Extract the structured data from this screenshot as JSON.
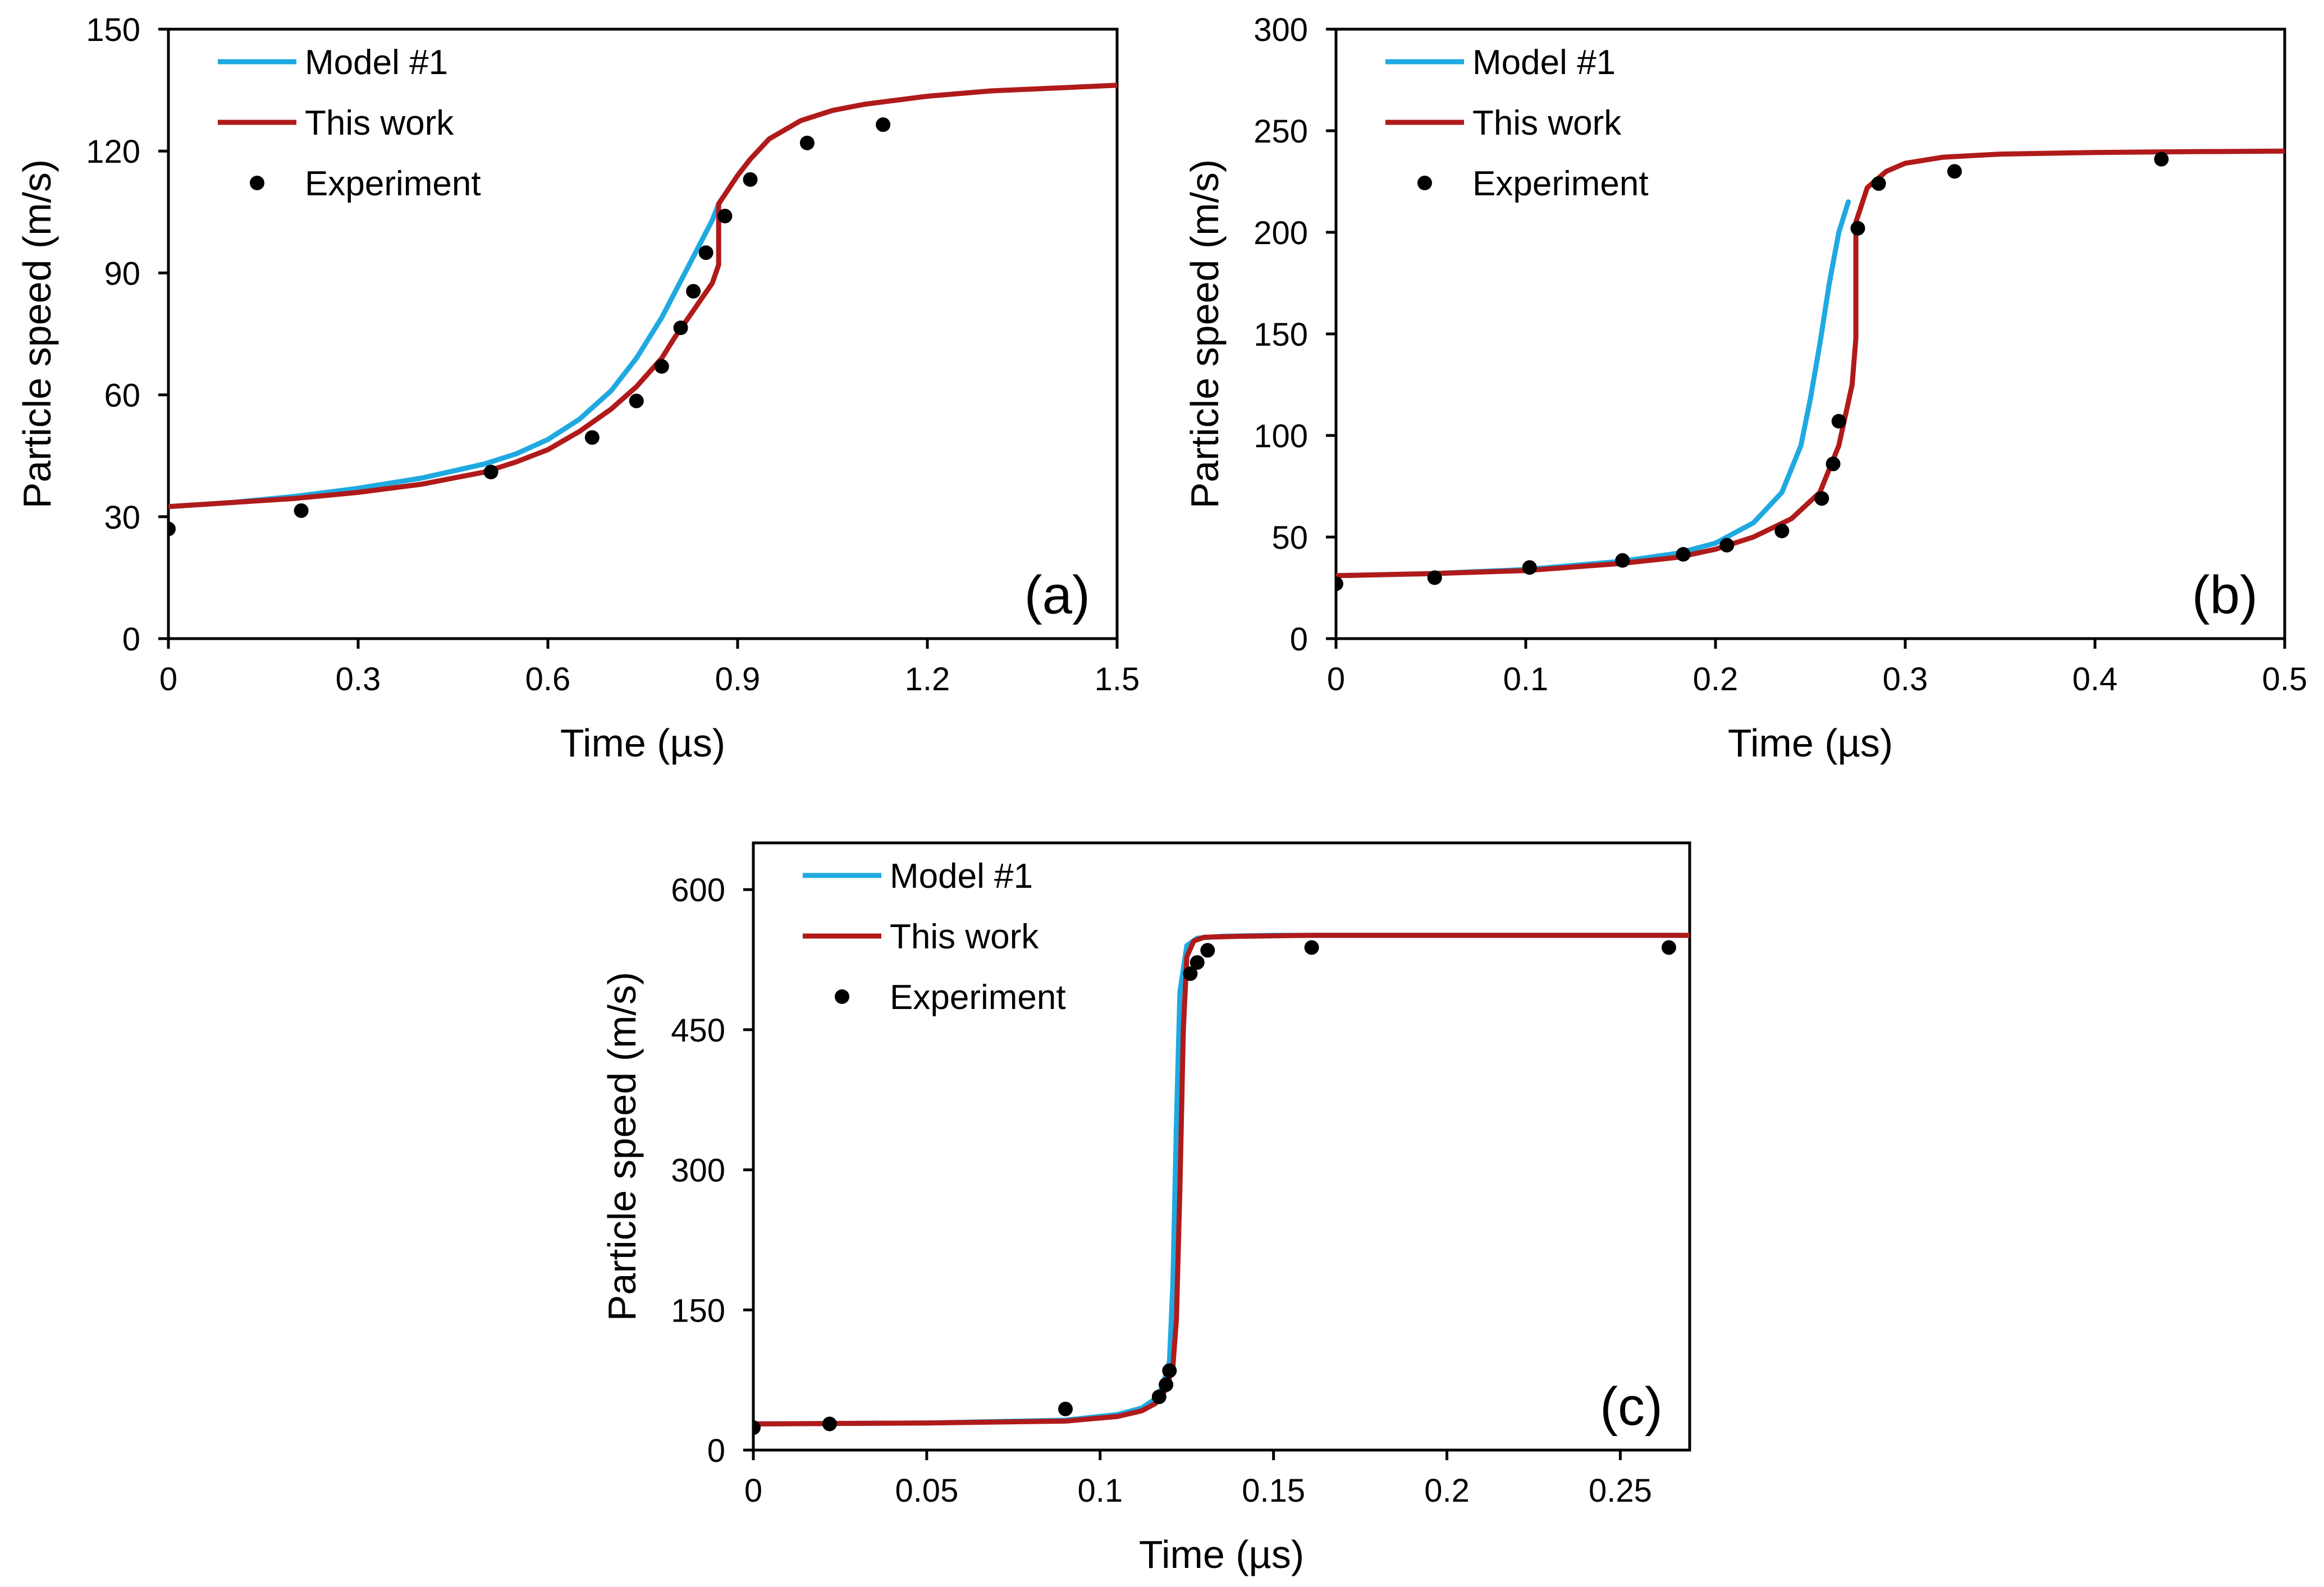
{
  "colors": {
    "model1": "#1FA9E1",
    "this_work": "#B01A1A",
    "experiment": "#000000",
    "axis": "#000000"
  },
  "chart_data": [
    {
      "type": "line",
      "panel_label": "(a)",
      "xlabel": "Time (µs)",
      "ylabel": "Particle speed (m/s)",
      "xlim": [
        0,
        1.5
      ],
      "ylim": [
        0,
        150
      ],
      "x_ticks": [
        "0",
        "0.3",
        "0.6",
        "0.9",
        "1.2",
        "1.5"
      ],
      "y_ticks": [
        "0",
        "30",
        "60",
        "90",
        "120",
        "150"
      ],
      "legend_position": "top-left",
      "series": [
        {
          "name": "Model #1",
          "kind": "line",
          "color_key": "model1",
          "x": [
            0,
            0.1,
            0.2,
            0.3,
            0.4,
            0.5,
            0.55,
            0.6,
            0.65,
            0.7,
            0.74,
            0.78,
            0.8,
            0.82,
            0.84,
            0.86,
            0.87
          ],
          "y": [
            32.5,
            33.5,
            35,
            37,
            39.5,
            43,
            45.5,
            49,
            54,
            61,
            69,
            79,
            85,
            91,
            97,
            103,
            107
          ]
        },
        {
          "name": "This work",
          "kind": "line",
          "color_key": "this_work",
          "x": [
            0,
            0.1,
            0.2,
            0.3,
            0.4,
            0.5,
            0.55,
            0.6,
            0.65,
            0.7,
            0.74,
            0.78,
            0.8,
            0.82,
            0.84,
            0.86,
            0.87,
            0.87,
            0.9,
            0.92,
            0.95,
            1.0,
            1.05,
            1.1,
            1.2,
            1.3,
            1.4,
            1.5
          ],
          "y": [
            32.5,
            33.5,
            34.5,
            36,
            38,
            41,
            43.5,
            46.5,
            51,
            56.5,
            62,
            69,
            74,
            78.5,
            83,
            87.5,
            92,
            107,
            114,
            118,
            123,
            127.5,
            130,
            131.5,
            133.5,
            134.8,
            135.5,
            136.2
          ]
        },
        {
          "name": "Experiment",
          "kind": "scatter",
          "color_key": "experiment",
          "x": [
            0,
            0.21,
            0.51,
            0.67,
            0.74,
            0.78,
            0.81,
            0.83,
            0.85,
            0.88,
            0.92,
            1.01,
            1.13
          ],
          "y": [
            27,
            31.5,
            41,
            49.5,
            58.5,
            67,
            76.5,
            85.5,
            95,
            104,
            113,
            122,
            126.5
          ]
        }
      ]
    },
    {
      "type": "line",
      "panel_label": "(b)",
      "xlabel": "Time (µs)",
      "ylabel": "Particle speed (m/s)",
      "xlim": [
        0,
        0.5
      ],
      "ylim": [
        0,
        300
      ],
      "x_ticks": [
        "0",
        "0.1",
        "0.2",
        "0.3",
        "0.4",
        "0.5"
      ],
      "y_ticks": [
        "0",
        "50",
        "100",
        "150",
        "200",
        "250",
        "300"
      ],
      "legend_position": "top-left",
      "series": [
        {
          "name": "Model #1",
          "kind": "line",
          "color_key": "model1",
          "x": [
            0,
            0.05,
            0.1,
            0.15,
            0.18,
            0.2,
            0.22,
            0.235,
            0.245,
            0.25,
            0.255,
            0.26,
            0.265,
            0.27
          ],
          "y": [
            31,
            32,
            34,
            38,
            42,
            47,
            57,
            72,
            95,
            118,
            145,
            175,
            200,
            215
          ]
        },
        {
          "name": "This work",
          "kind": "line",
          "color_key": "this_work",
          "x": [
            0,
            0.05,
            0.1,
            0.15,
            0.18,
            0.2,
            0.22,
            0.24,
            0.255,
            0.265,
            0.272,
            0.274,
            0.274,
            0.28,
            0.29,
            0.3,
            0.32,
            0.35,
            0.4,
            0.45,
            0.5
          ],
          "y": [
            31,
            32,
            33.5,
            37,
            40,
            44,
            50,
            59,
            72,
            95,
            125,
            148,
            205,
            222,
            230,
            234,
            237,
            238.5,
            239.3,
            239.7,
            240
          ]
        },
        {
          "name": "Experiment",
          "kind": "scatter",
          "color_key": "experiment",
          "x": [
            0,
            0.052,
            0.102,
            0.151,
            0.183,
            0.206,
            0.235,
            0.256,
            0.262,
            0.265,
            0.275,
            0.286,
            0.326,
            0.435
          ],
          "y": [
            27,
            30,
            35,
            38.5,
            41.5,
            46,
            53,
            69,
            86,
            107,
            202,
            224,
            230,
            236
          ]
        }
      ]
    },
    {
      "type": "line",
      "panel_label": "(c)",
      "xlabel": "Time (µs)",
      "ylabel": "Particle speed (m/s)",
      "xlim": [
        0,
        0.27
      ],
      "ylim": [
        0,
        650
      ],
      "x_ticks": [
        "0",
        "0.05",
        "0.1",
        "0.15",
        "0.2",
        "0.25"
      ],
      "y_ticks": [
        "0",
        "150",
        "300",
        "450",
        "600"
      ],
      "legend_position": "top-left",
      "series": [
        {
          "name": "Model #1",
          "kind": "line",
          "color_key": "model1",
          "x": [
            0,
            0.05,
            0.09,
            0.105,
            0.112,
            0.116,
            0.118,
            0.12,
            0.121,
            0.122,
            0.123,
            0.125,
            0.128,
            0.135,
            0.15,
            0.2,
            0.27
          ],
          "y": [
            28,
            29,
            32,
            38,
            45,
            55,
            68,
            95,
            180,
            350,
            490,
            540,
            548,
            550,
            551,
            551,
            551
          ]
        },
        {
          "name": "This work",
          "kind": "line",
          "color_key": "this_work",
          "x": [
            0,
            0.05,
            0.09,
            0.105,
            0.112,
            0.116,
            0.119,
            0.121,
            0.122,
            0.123,
            0.124,
            0.125,
            0.127,
            0.13,
            0.14,
            0.16,
            0.2,
            0.27
          ],
          "y": [
            28,
            29,
            31,
            36,
            42,
            50,
            65,
            90,
            140,
            280,
            450,
            528,
            545,
            549,
            550,
            551,
            551,
            551
          ]
        },
        {
          "name": "Experiment",
          "kind": "scatter",
          "color_key": "experiment",
          "x": [
            0,
            0.022,
            0.09,
            0.117,
            0.119,
            0.12,
            0.126,
            0.128,
            0.131,
            0.161,
            0.264
          ],
          "y": [
            24,
            28,
            44,
            57,
            70,
            85,
            510,
            522,
            535,
            538,
            538
          ]
        }
      ]
    }
  ]
}
